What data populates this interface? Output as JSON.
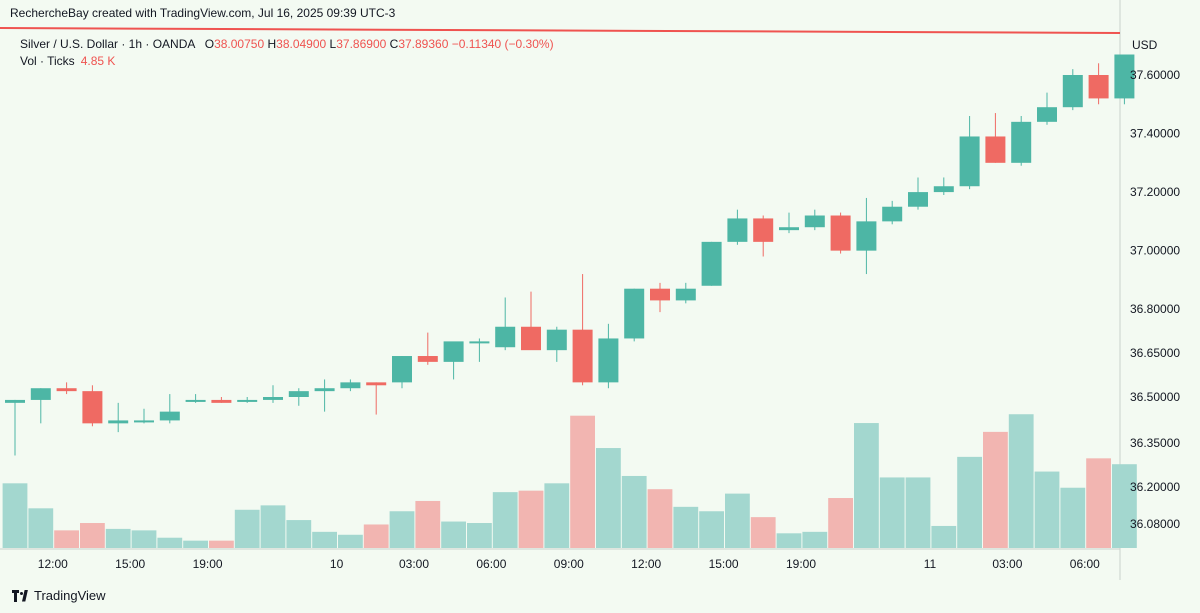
{
  "header": {
    "text": "RechercheBay created with TradingView.com, Jul 16, 2025 09:39 UTC-3"
  },
  "legend": {
    "symbol": "Silver / U.S. Dollar · 1h · OANDA",
    "o_label": "O",
    "o_value": "38.00750",
    "h_label": "H",
    "h_value": "38.04900",
    "l_label": "L",
    "l_value": "37.86900",
    "c_label": "C",
    "c_value": "37.89360",
    "change": "−0.11340 (−0.30%)",
    "vol_label": "Vol · Ticks",
    "vol_value": "4.85 K"
  },
  "footer": {
    "brand": "TradingView"
  },
  "colors": {
    "up": "#4db6a5",
    "down": "#ef6a63",
    "vol_up": "#a3d7cf",
    "vol_down": "#f2b5b1",
    "bg": "#f3faf2"
  },
  "chart_data": {
    "type": "candlestick",
    "currency_label": "USD",
    "y_ticks": [
      "37.60000",
      "37.40000",
      "37.20000",
      "37.00000",
      "36.80000",
      "36.65000",
      "36.50000",
      "36.35000",
      "36.20000",
      "36.08000"
    ],
    "y_tick_values": [
      37.6,
      37.4,
      37.2,
      37.0,
      36.8,
      36.65,
      36.5,
      36.35,
      36.2,
      36.08
    ],
    "x_ticks": [
      {
        "label": "12:00",
        "index": 1
      },
      {
        "label": "15:00",
        "index": 4
      },
      {
        "label": "19:00",
        "index": 7
      },
      {
        "label": "10",
        "index": 12
      },
      {
        "label": "03:00",
        "index": 15
      },
      {
        "label": "06:00",
        "index": 18
      },
      {
        "label": "09:00",
        "index": 21
      },
      {
        "label": "12:00",
        "index": 24
      },
      {
        "label": "15:00",
        "index": 27
      },
      {
        "label": "19:00",
        "index": 30
      },
      {
        "label": "11",
        "index": 35
      },
      {
        "label": "03:00",
        "index": 38
      },
      {
        "label": "06:00",
        "index": 41
      }
    ],
    "candles": [
      {
        "o": 36.48,
        "h": 36.49,
        "l": 36.3,
        "c": 36.49
      },
      {
        "o": 36.49,
        "h": 36.53,
        "l": 36.41,
        "c": 36.53
      },
      {
        "o": 36.53,
        "h": 36.55,
        "l": 36.51,
        "c": 36.52
      },
      {
        "o": 36.52,
        "h": 36.54,
        "l": 36.4,
        "c": 36.41
      },
      {
        "o": 36.41,
        "h": 36.48,
        "l": 36.38,
        "c": 36.42
      },
      {
        "o": 36.42,
        "h": 36.46,
        "l": 36.41,
        "c": 36.42
      },
      {
        "o": 36.42,
        "h": 36.51,
        "l": 36.41,
        "c": 36.45
      },
      {
        "o": 36.49,
        "h": 36.51,
        "l": 36.48,
        "c": 36.49
      },
      {
        "o": 36.49,
        "h": 36.5,
        "l": 36.48,
        "c": 36.48
      },
      {
        "o": 36.49,
        "h": 36.5,
        "l": 36.48,
        "c": 36.49
      },
      {
        "o": 36.49,
        "h": 36.54,
        "l": 36.48,
        "c": 36.5
      },
      {
        "o": 36.5,
        "h": 36.53,
        "l": 36.47,
        "c": 36.52
      },
      {
        "o": 36.52,
        "h": 36.56,
        "l": 36.45,
        "c": 36.53
      },
      {
        "o": 36.53,
        "h": 36.56,
        "l": 36.52,
        "c": 36.55
      },
      {
        "o": 36.55,
        "h": 36.55,
        "l": 36.44,
        "c": 36.54
      },
      {
        "o": 36.55,
        "h": 36.64,
        "l": 36.53,
        "c": 36.64
      },
      {
        "o": 36.64,
        "h": 36.72,
        "l": 36.61,
        "c": 36.62
      },
      {
        "o": 36.62,
        "h": 36.68,
        "l": 36.56,
        "c": 36.69
      },
      {
        "o": 36.69,
        "h": 36.7,
        "l": 36.62,
        "c": 36.69
      },
      {
        "o": 36.67,
        "h": 36.84,
        "l": 36.66,
        "c": 36.74
      },
      {
        "o": 36.74,
        "h": 36.86,
        "l": 36.67,
        "c": 36.66
      },
      {
        "o": 36.66,
        "h": 36.74,
        "l": 36.62,
        "c": 36.73
      },
      {
        "o": 36.73,
        "h": 36.92,
        "l": 36.54,
        "c": 36.55
      },
      {
        "o": 36.55,
        "h": 36.75,
        "l": 36.53,
        "c": 36.7
      },
      {
        "o": 36.7,
        "h": 36.87,
        "l": 36.69,
        "c": 36.87
      },
      {
        "o": 36.87,
        "h": 36.89,
        "l": 36.79,
        "c": 36.83
      },
      {
        "o": 36.83,
        "h": 36.89,
        "l": 36.82,
        "c": 36.87
      },
      {
        "o": 36.88,
        "h": 37.03,
        "l": 36.88,
        "c": 37.03
      },
      {
        "o": 37.03,
        "h": 37.14,
        "l": 37.02,
        "c": 37.11
      },
      {
        "o": 37.11,
        "h": 37.12,
        "l": 36.98,
        "c": 37.03
      },
      {
        "o": 37.07,
        "h": 37.13,
        "l": 37.06,
        "c": 37.08
      },
      {
        "o": 37.08,
        "h": 37.14,
        "l": 37.07,
        "c": 37.12
      },
      {
        "o": 37.12,
        "h": 37.13,
        "l": 36.99,
        "c": 37.0
      },
      {
        "o": 37.0,
        "h": 37.18,
        "l": 36.92,
        "c": 37.1
      },
      {
        "o": 37.1,
        "h": 37.17,
        "l": 37.09,
        "c": 37.15
      },
      {
        "o": 37.15,
        "h": 37.25,
        "l": 37.14,
        "c": 37.2
      },
      {
        "o": 37.2,
        "h": 37.25,
        "l": 37.19,
        "c": 37.22
      },
      {
        "o": 37.22,
        "h": 37.46,
        "l": 37.21,
        "c": 37.39
      },
      {
        "o": 37.39,
        "h": 37.47,
        "l": 37.3,
        "c": 37.3
      },
      {
        "o": 37.3,
        "h": 37.46,
        "l": 37.29,
        "c": 37.44
      },
      {
        "o": 37.44,
        "h": 37.54,
        "l": 37.43,
        "c": 37.49
      },
      {
        "o": 37.49,
        "h": 37.62,
        "l": 37.48,
        "c": 37.6
      },
      {
        "o": 37.6,
        "h": 37.64,
        "l": 37.5,
        "c": 37.52
      },
      {
        "o": 37.52,
        "h": 37.66,
        "l": 37.5,
        "c": 37.67
      }
    ],
    "volumes": [
      2.2,
      1.35,
      0.6,
      0.85,
      0.65,
      0.6,
      0.35,
      0.25,
      0.25,
      1.3,
      1.45,
      0.95,
      0.55,
      0.45,
      0.8,
      1.25,
      1.6,
      0.9,
      0.85,
      1.9,
      1.95,
      2.2,
      4.5,
      3.4,
      2.45,
      2.0,
      1.4,
      1.25,
      1.85,
      1.05,
      0.5,
      0.55,
      1.7,
      4.25,
      2.4,
      2.4,
      0.75,
      3.1,
      3.95,
      4.55,
      2.6,
      2.05,
      3.05,
      2.85
    ]
  }
}
